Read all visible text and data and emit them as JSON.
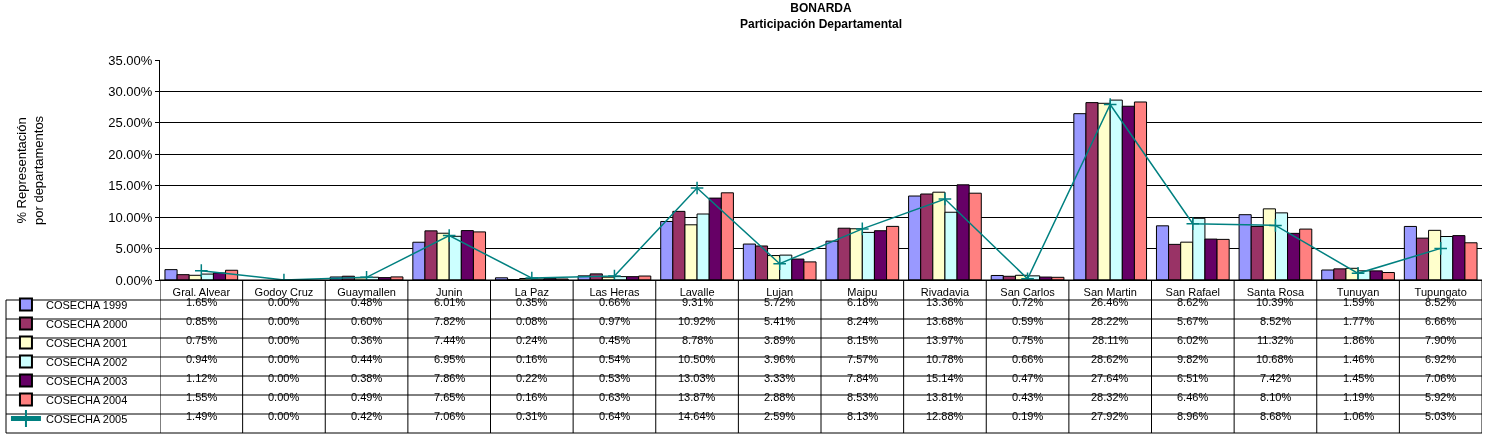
{
  "chart_data": {
    "type": "bar",
    "title": "BONARDA",
    "subtitle": "Participación Departamental",
    "ylabel": "% Representación por departamentos",
    "categories": [
      "Gral. Alvear",
      "Godoy Cruz",
      "Guaymallen",
      "Junin",
      "La Paz",
      "Las Heras",
      "Lavalle",
      "Lujan",
      "Maipu",
      "Rivadavia",
      "San Carlos",
      "San Martin",
      "San Rafael",
      "Santa Rosa",
      "Tunuyan",
      "Tupungato"
    ],
    "ylim": [
      0,
      35
    ],
    "yticks": [
      {
        "value": 0,
        "label": "0.00%"
      },
      {
        "value": 5,
        "label": "5.00%"
      },
      {
        "value": 10,
        "label": "10.00%"
      },
      {
        "value": 15,
        "label": "15.00%"
      },
      {
        "value": 20,
        "label": "20.00%"
      },
      {
        "value": 25,
        "label": "25.00%"
      },
      {
        "value": 30,
        "label": "30.00%"
      },
      {
        "value": 35,
        "label": "35.00%"
      }
    ],
    "grid": "y",
    "legend": "bottom left",
    "series": [
      {
        "name": "COSECHA 1999",
        "color": "#9999ff",
        "values": [
          1.65,
          0.0,
          0.48,
          6.01,
          0.35,
          0.66,
          9.31,
          5.72,
          6.18,
          13.36,
          0.72,
          26.46,
          8.62,
          10.39,
          1.59,
          8.52
        ],
        "value_labels": [
          "1.65%",
          "0.00%",
          "0.48%",
          "6.01%",
          "0.35%",
          "0.66%",
          "9.31%",
          "5.72%",
          "6.18%",
          "13.36%",
          "0.72%",
          "26.46%",
          "8.62%",
          "10.39%",
          "1.59%",
          "8.52%"
        ]
      },
      {
        "name": "COSECHA 2000",
        "color": "#993366",
        "values": [
          0.85,
          0.0,
          0.6,
          7.82,
          0.08,
          0.97,
          10.92,
          5.41,
          8.24,
          13.68,
          0.59,
          28.22,
          5.67,
          8.52,
          1.77,
          6.66
        ],
        "value_labels": [
          "0.85%",
          "0.00%",
          "0.60%",
          "7.82%",
          "0.08%",
          "0.97%",
          "10.92%",
          "5.41%",
          "8.24%",
          "13.68%",
          "0.59%",
          "28.22%",
          "5.67%",
          "8.52%",
          "1.77%",
          "6.66%"
        ]
      },
      {
        "name": "COSECHA 2001",
        "color": "#ffffcc",
        "values": [
          0.75,
          0.0,
          0.36,
          7.44,
          0.24,
          0.45,
          8.78,
          3.89,
          8.15,
          13.97,
          0.75,
          28.11,
          6.02,
          11.32,
          1.86,
          7.9
        ],
        "value_labels": [
          "0.75%",
          "0.00%",
          "0.36%",
          "7.44%",
          "0.24%",
          "0.45%",
          "8.78%",
          "3.89%",
          "8.15%",
          "13.97%",
          "0.75%",
          "28.11%",
          "6.02%",
          "11.32%",
          "1.86%",
          "7.90%"
        ]
      },
      {
        "name": "COSECHA 2002",
        "color": "#ccffff",
        "values": [
          0.94,
          0.0,
          0.44,
          6.95,
          0.16,
          0.54,
          10.5,
          3.96,
          7.57,
          10.78,
          0.66,
          28.62,
          9.82,
          10.68,
          1.46,
          6.92
        ],
        "value_labels": [
          "0.94%",
          "0.00%",
          "0.44%",
          "6.95%",
          "0.16%",
          "0.54%",
          "10.50%",
          "3.96%",
          "7.57%",
          "10.78%",
          "0.66%",
          "28.62%",
          "9.82%",
          "10.68%",
          "1.46%",
          "6.92%"
        ]
      },
      {
        "name": "COSECHA 2003",
        "color": "#660066",
        "values": [
          1.12,
          0.0,
          0.38,
          7.86,
          0.22,
          0.53,
          13.03,
          3.33,
          7.84,
          15.14,
          0.47,
          27.64,
          6.51,
          7.42,
          1.45,
          7.06
        ],
        "value_labels": [
          "1.12%",
          "0.00%",
          "0.38%",
          "7.86%",
          "0.22%",
          "0.53%",
          "13.03%",
          "3.33%",
          "7.84%",
          "15.14%",
          "0.47%",
          "27.64%",
          "6.51%",
          "7.42%",
          "1.45%",
          "7.06%"
        ]
      },
      {
        "name": "COSECHA 2004",
        "color": "#ff8080",
        "values": [
          1.55,
          0.0,
          0.49,
          7.65,
          0.16,
          0.63,
          13.87,
          2.88,
          8.53,
          13.81,
          0.43,
          28.32,
          6.46,
          8.1,
          1.19,
          5.92
        ],
        "value_labels": [
          "1.55%",
          "0.00%",
          "0.49%",
          "7.65%",
          "0.16%",
          "0.63%",
          "13.87%",
          "2.88%",
          "8.53%",
          "13.81%",
          "0.43%",
          "28.32%",
          "6.46%",
          "8.10%",
          "1.19%",
          "5.92%"
        ]
      },
      {
        "name": "COSECHA 2005",
        "type": "line",
        "marker": "cross",
        "color": "#008080",
        "values": [
          1.49,
          0.0,
          0.42,
          7.06,
          0.31,
          0.64,
          14.64,
          2.59,
          8.13,
          12.88,
          0.19,
          27.92,
          8.96,
          8.68,
          1.06,
          5.03
        ],
        "value_labels": [
          "1.49%",
          "0.00%",
          "0.42%",
          "7.06%",
          "0.31%",
          "0.64%",
          "14.64%",
          "2.59%",
          "8.13%",
          "12.88%",
          "0.19%",
          "27.92%",
          "8.96%",
          "8.68%",
          "1.06%",
          "5.03%"
        ]
      }
    ]
  }
}
